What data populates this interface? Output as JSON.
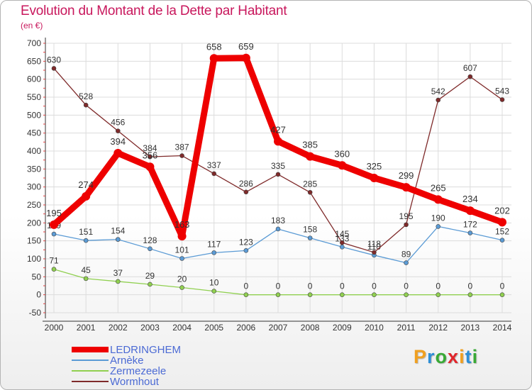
{
  "header": {
    "title": "Evolution du Montant de la Dette par Habitant",
    "unit": "(en €)"
  },
  "brand": {
    "letters": [
      "P",
      "r",
      "o",
      "x",
      "i",
      "t",
      "i"
    ],
    "colors": [
      "#f0a020",
      "#2c8ed6",
      "#39a935",
      "#e1262c",
      "#f0a020",
      "#2c8ed6",
      "#39a935"
    ]
  },
  "chart_data": {
    "type": "line",
    "title": "Evolution du Montant de la Dette par Habitant",
    "subtitle": "(en €)",
    "xlabel": "",
    "ylabel": "",
    "x": [
      "2000",
      "2001",
      "2002",
      "2003",
      "2004",
      "2005",
      "2006",
      "2007",
      "2008",
      "2009",
      "2010",
      "2011",
      "2012",
      "2013",
      "2014"
    ],
    "ylim": [
      -50,
      700
    ],
    "yticks": [
      -50,
      0,
      50,
      100,
      150,
      200,
      250,
      300,
      350,
      400,
      450,
      500,
      550,
      600,
      650,
      700
    ],
    "grid": true,
    "legend_position": "bottom-left",
    "series": [
      {
        "name": "LEDRINGHEM",
        "color": "#ee0000",
        "values": [
          195,
          274,
          394,
          356,
          163,
          658,
          659,
          427,
          385,
          360,
          325,
          299,
          265,
          234,
          202
        ],
        "labels": [
          "195",
          "274",
          "394",
          "356",
          "163",
          "658",
          "659",
          "427",
          "385",
          "360",
          "325",
          "299",
          "265",
          "234",
          "202"
        ]
      },
      {
        "name": "Arnèke",
        "color": "#5b9bd5",
        "values": [
          169,
          151,
          154,
          128,
          101,
          117,
          123,
          183,
          158,
          133,
          110,
          89,
          190,
          172,
          152
        ],
        "labels": [
          "169",
          "151",
          "154",
          "128",
          "101",
          "117",
          "123",
          "183",
          "158",
          "133",
          "110",
          "89",
          "190",
          "172",
          "152"
        ]
      },
      {
        "name": "Zermezeele",
        "color": "#90d050",
        "values": [
          71,
          45,
          37,
          29,
          20,
          10,
          0,
          0,
          0,
          0,
          0,
          0,
          0,
          0,
          0
        ],
        "labels": [
          "71",
          "45",
          "37",
          "29",
          "20",
          "10",
          "0",
          "0",
          "0",
          "0",
          "0",
          "0",
          "0",
          "0",
          "0"
        ]
      },
      {
        "name": "Wormhout",
        "color": "#7f2a2a",
        "values": [
          630,
          528,
          456,
          384,
          387,
          337,
          286,
          335,
          285,
          145,
          118,
          195,
          542,
          607,
          543
        ],
        "labels": [
          "630",
          "528",
          "456",
          "384",
          "387",
          "337",
          "286",
          "335",
          "285",
          "145",
          "118",
          "195",
          "542",
          "607",
          "543"
        ]
      }
    ]
  }
}
